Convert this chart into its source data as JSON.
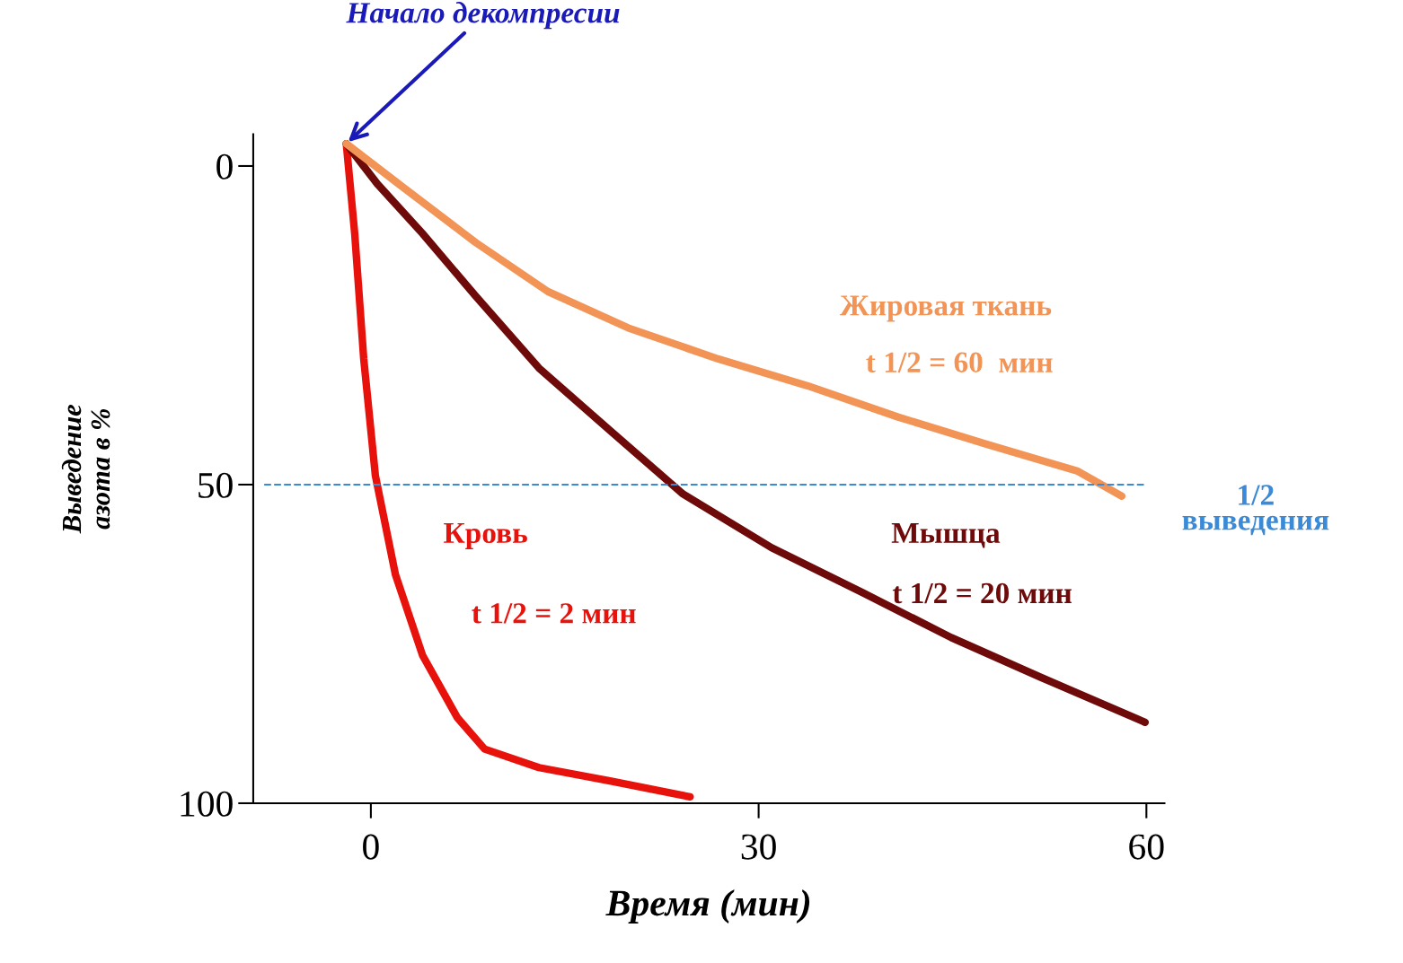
{
  "chart_data": {
    "type": "line",
    "xlabel": "Время (мин)",
    "ylabel": "Выведение\nазота в %",
    "xlim": [
      -9.1,
      61.4
    ],
    "ylim": [
      100,
      -5
    ],
    "xticks": [
      0,
      30,
      60
    ],
    "yticks": [
      0,
      50,
      100
    ],
    "grid": false,
    "line_style": "solid",
    "marker": "none",
    "series": [
      {
        "name": "Кровь",
        "color": "#e8120c",
        "x": [
          -1.9,
          -1.25,
          -0.55,
          0.35,
          1.9,
          4.0,
          6.7,
          8.8,
          13.0,
          18.5,
          24.7
        ],
        "values": [
          -3.5,
          10.6,
          30.3,
          48.6,
          64.1,
          76.8,
          86.6,
          91.5,
          94.4,
          96.5,
          99.0
        ]
      },
      {
        "name": "Мышца",
        "color": "#6e0a0a",
        "x": [
          -1.9,
          0.5,
          4.0,
          8.1,
          13.0,
          18.5,
          24.1,
          31.0,
          38.0,
          44.9,
          51.9,
          59.9
        ],
        "values": [
          -3.5,
          2.8,
          10.6,
          20.4,
          31.7,
          41.5,
          51.4,
          59.9,
          66.9,
          74.0,
          80.3,
          87.3
        ]
      },
      {
        "name": "Жировая ткань",
        "color": "#f39457",
        "x": [
          -1.9,
          2.6,
          8.1,
          13.7,
          19.9,
          26.9,
          33.8,
          40.8,
          47.7,
          54.7,
          58.1
        ],
        "values": [
          -3.5,
          3.5,
          12.0,
          19.7,
          25.4,
          30.3,
          34.5,
          39.4,
          43.7,
          47.9,
          51.8
        ]
      }
    ],
    "ref_lines": [
      {
        "axis": "y",
        "value": 50,
        "label": "1/2\nвыведения",
        "color": "#3a8ad8",
        "line_style": "dashed"
      }
    ],
    "annotations": [
      {
        "text": "Начало декомпресии",
        "x": -1.9,
        "y": -3.5
      },
      "t 1/2 = 2 мин",
      "t 1/2 = 20 мин",
      "t 1/2 = 60  мин"
    ]
  }
}
